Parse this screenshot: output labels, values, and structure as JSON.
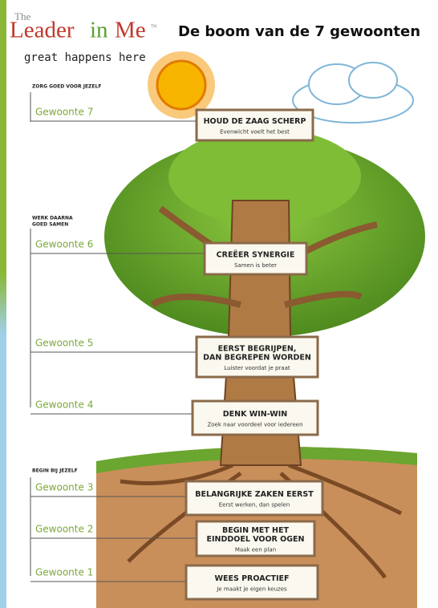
{
  "logo": {
    "the": "The",
    "leader": "Leader",
    "in": "in",
    "me": "Me",
    "tm": "TM",
    "tagline": "great happens here"
  },
  "title": "De boom van de 7 gewoonten",
  "groups": [
    {
      "lines": [
        "ZORG GOED VOOR JEZELF"
      ]
    },
    {
      "lines": [
        "WERK DAARNA",
        "GOED SAMEN"
      ]
    },
    {
      "lines": [
        "BEGIN BIJ JEZELF"
      ]
    }
  ],
  "habits": [
    {
      "label": "Gewoonte 7",
      "lines": [
        "HOUD DE ZAAG SCHERP"
      ],
      "subtitle": "Evenwicht voelt het best"
    },
    {
      "label": "Gewoonte 6",
      "lines": [
        "CREËER SYNERGIE"
      ],
      "subtitle": "Samen is beter"
    },
    {
      "label": "Gewoonte 5",
      "lines": [
        "EERST BEGRIJPEN,",
        "DAN BEGREPEN WORDEN"
      ],
      "subtitle": "Luister voordat je praat"
    },
    {
      "label": "Gewoonte 4",
      "lines": [
        "DENK WIN-WIN"
      ],
      "subtitle": "Zoek naar voordeel voor iedereen"
    },
    {
      "label": "Gewoonte 3",
      "lines": [
        "BELANGRIJKE ZAKEN EERST"
      ],
      "subtitle": "Eerst werken, dan spelen"
    },
    {
      "label": "Gewoonte 2",
      "lines": [
        "BEGIN MET HET",
        "EINDDOEL VOOR OGEN"
      ],
      "subtitle": "Maak een plan"
    },
    {
      "label": "Gewoonte 1",
      "lines": [
        "WEES PROACTIEF"
      ],
      "subtitle": "Je maakt je eigen keuzes"
    }
  ]
}
